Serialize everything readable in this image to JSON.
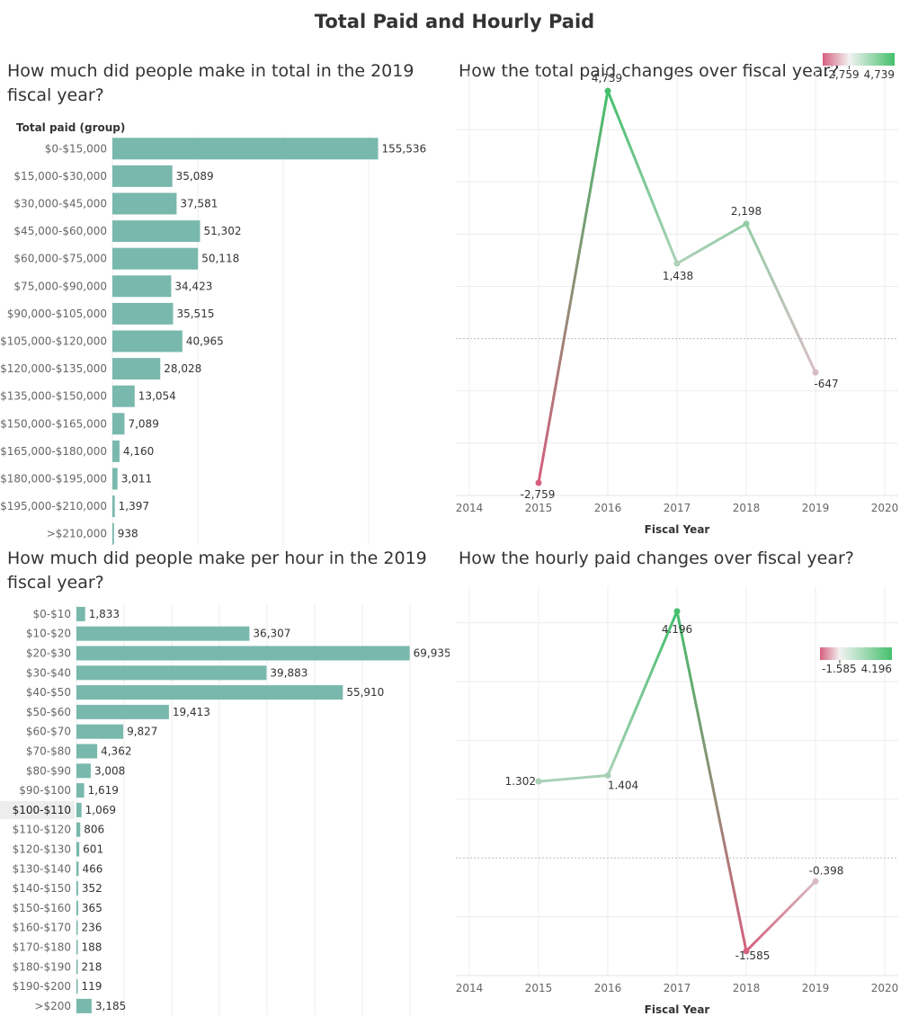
{
  "dashboard_title": "Total Paid and Hourly Paid",
  "panels": {
    "total_bar_title": "How much did people make in total in the 2019 fiscal year?",
    "total_line_title": "How the total paid changes over fiscal year?",
    "hourly_bar_title": "How much did people make per hour in the 2019 fiscal year?",
    "hourly_line_title": "How the hourly paid changes over fiscal year?"
  },
  "colors": {
    "bar": "#79b8ad",
    "positive": "#45bf6d",
    "neutral": "#d9d9d9",
    "negative": "#d5607e",
    "grid": "#ececec",
    "zero_line": "#bdbdbd"
  },
  "chart_data": [
    {
      "type": "bar",
      "orientation": "horizontal",
      "title": "How much did people make in total in the 2019 fiscal year?",
      "header": "Total paid (group)",
      "categories": [
        "$0-$15,000",
        "$15,000-$30,000",
        "$30,000-$45,000",
        "$45,000-$60,000",
        "$60,000-$75,000",
        "$75,000-$90,000",
        "$90,000-$105,000",
        "$105,000-$120,000",
        "$120,000-$135,000",
        "$135,000-$150,000",
        "$150,000-$165,000",
        "$165,000-$180,000",
        "$180,000-$195,000",
        "$195,000-$210,000",
        ">$210,000"
      ],
      "values": [
        155536,
        35089,
        37581,
        51302,
        50118,
        34423,
        35515,
        40965,
        28028,
        13054,
        7089,
        4160,
        3011,
        1397,
        938
      ],
      "labels": [
        "155,536",
        "35,089",
        "37,581",
        "51,302",
        "50,118",
        "34,423",
        "35,515",
        "40,965",
        "28,028",
        "13,054",
        "7,089",
        "4,160",
        "3,011",
        "1,397",
        "938"
      ],
      "xlim": [
        0,
        200000
      ]
    },
    {
      "type": "line",
      "title": "How the total paid changes over fiscal year?",
      "xlabel": "Fiscal Year",
      "x_ticks": [
        "2014",
        "2015",
        "2016",
        "2017",
        "2018",
        "2019",
        "2020"
      ],
      "x": [
        2015,
        2016,
        2017,
        2018,
        2019
      ],
      "values": [
        -2759,
        4739,
        1438,
        2198,
        -647
      ],
      "labels": [
        "-2,759",
        "4,739",
        "1,438",
        "2,198",
        "-647"
      ],
      "ylim": [
        -3000,
        5000
      ],
      "legend": {
        "min_label": "-2,759",
        "max_label": "4,739",
        "min": -2759,
        "max": 4739,
        "placement": "top-right"
      }
    },
    {
      "type": "bar",
      "orientation": "horizontal",
      "title": "How much did people make per hour in the 2019 fiscal year?",
      "categories": [
        "$0-$10",
        "$10-$20",
        "$20-$30",
        "$30-$40",
        "$40-$50",
        "$50-$60",
        "$60-$70",
        "$70-$80",
        "$80-$90",
        "$90-$100",
        "$100-$110",
        "$110-$120",
        "$120-$130",
        "$130-$140",
        "$140-$150",
        "$150-$160",
        "$160-$170",
        "$170-$180",
        "$180-$190",
        "$190-$200",
        ">$200"
      ],
      "values": [
        1833,
        36307,
        69935,
        39883,
        55910,
        19413,
        9827,
        4362,
        3008,
        1619,
        1069,
        806,
        601,
        466,
        352,
        365,
        236,
        188,
        218,
        119,
        3185
      ],
      "labels": [
        "1,833",
        "36,307",
        "69,935",
        "39,883",
        "55,910",
        "19,413",
        "9,827",
        "4,362",
        "3,008",
        "1,619",
        "1,069",
        "806",
        "601",
        "466",
        "352",
        "365",
        "236",
        "188",
        "218",
        "119",
        "3,185"
      ],
      "highlighted": "$100-$110",
      "xlim": [
        0,
        80000
      ]
    },
    {
      "type": "line",
      "title": "How the hourly paid changes over fiscal year?",
      "xlabel": "Fiscal Year",
      "x_ticks": [
        "2014",
        "2015",
        "2016",
        "2017",
        "2018",
        "2019",
        "2020"
      ],
      "x": [
        2015,
        2016,
        2017,
        2018,
        2019
      ],
      "values": [
        1.302,
        1.404,
        4.196,
        -1.585,
        -0.398
      ],
      "labels": [
        "1.302",
        "1.404",
        "4.196",
        "-1.585",
        "-0.398"
      ],
      "ylim": [
        -2,
        4.5
      ],
      "legend": {
        "min_label": "-1.585",
        "max_label": "4.196",
        "min": -1.585,
        "max": 4.196,
        "placement": "top-right"
      }
    }
  ]
}
